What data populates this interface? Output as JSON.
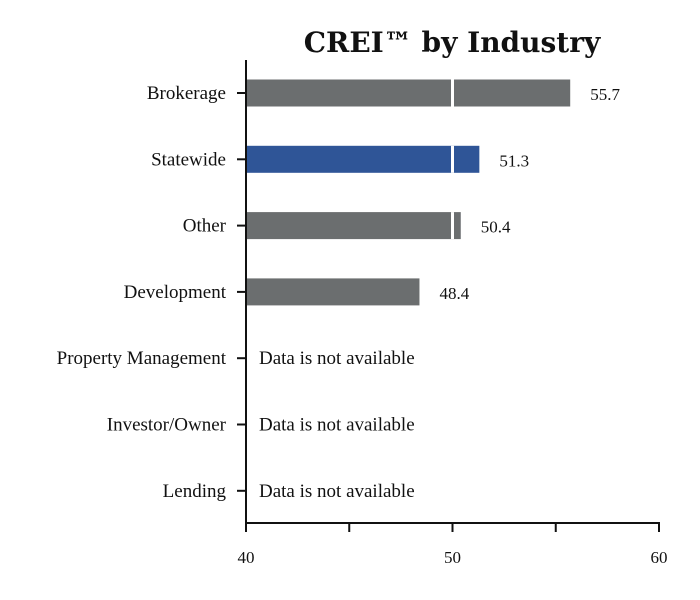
{
  "chart_data": {
    "type": "bar",
    "orientation": "horizontal",
    "title": "CREI™ by Industry",
    "xlabel": "",
    "ylabel": "",
    "xlim": [
      40,
      60
    ],
    "x_ticks": [
      40,
      45,
      50,
      55,
      60
    ],
    "x_tick_labels": [
      "40",
      "",
      "50",
      "",
      "60"
    ],
    "reference_line": 50,
    "grid": false,
    "legend": "none",
    "not_available_text": "Data is not available",
    "categories": [
      "Brokerage",
      "Statewide",
      "Other",
      "Development",
      "Property Management",
      "Investor/Owner",
      "Lending"
    ],
    "values": [
      55.7,
      51.3,
      50.4,
      48.4,
      null,
      null,
      null
    ],
    "value_labels": [
      "55.7",
      "51.3",
      "50.4",
      "48.4",
      null,
      null,
      null
    ],
    "bar_colors": [
      "#6b6e6f",
      "#2f5597",
      "#6b6e6f",
      "#6b6e6f",
      null,
      null,
      null
    ],
    "colors": {
      "default": "#6b6e6f",
      "highlight": "#2f5597"
    }
  }
}
